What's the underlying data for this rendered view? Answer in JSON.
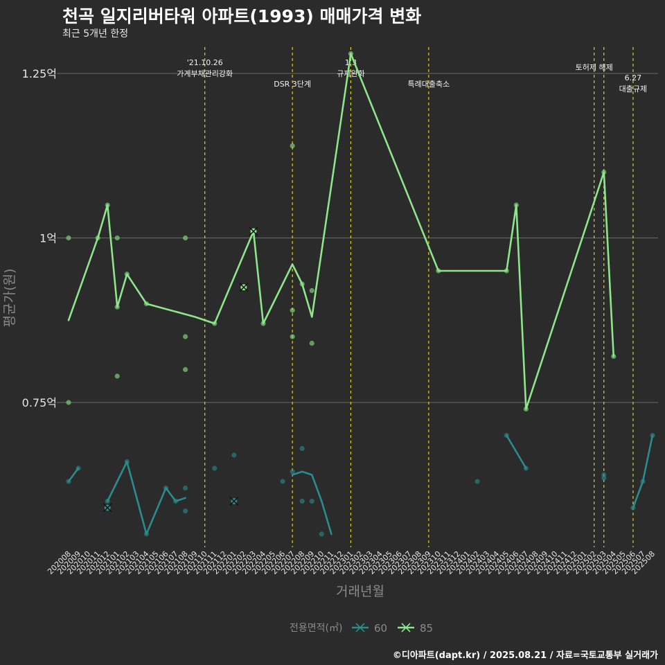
{
  "title": "천곡 일지리버타워 아파트(1993) 매매가격 변화",
  "subtitle": "최근 5개년 한정",
  "caption": "©디아파트(dapt.kr) / 2025.08.21 / 자료=국토교통부 실거래가",
  "colors": {
    "background": "#2b2b2b",
    "series_60": "#2a8c8c",
    "series_85": "#8ee68a",
    "event_line": "#d8d81a",
    "grid": "#6a6a6a"
  },
  "chart_data": {
    "type": "line",
    "xlabel": "거래년월",
    "ylabel": "평균가(원)",
    "categories": [
      "202008",
      "202009",
      "202010",
      "202011",
      "202012",
      "202101",
      "202102",
      "202103",
      "202104",
      "202105",
      "202106",
      "202107",
      "202108",
      "202109",
      "202110",
      "202111",
      "202112",
      "202201",
      "202202",
      "202203",
      "202204",
      "202205",
      "202206",
      "202207",
      "202208",
      "202209",
      "202210",
      "202211",
      "202212",
      "202301",
      "202302",
      "202303",
      "202304",
      "202305",
      "202306",
      "202307",
      "202308",
      "202309",
      "202310",
      "202311",
      "202312",
      "202401",
      "202402",
      "202403",
      "202404",
      "202405",
      "202406",
      "202407",
      "202408",
      "202409",
      "202410",
      "202411",
      "202412",
      "202501",
      "202502",
      "202503",
      "202504",
      "202505",
      "202506",
      "202507",
      "202508"
    ],
    "ylim": [
      0.53,
      1.29
    ],
    "yticks": [
      {
        "value": 0.75,
        "label": "0.75억"
      },
      {
        "value": 1.0,
        "label": "1억"
      },
      {
        "value": 1.25,
        "label": "1.25억"
      }
    ],
    "legend": {
      "title": "전용면적(㎡)",
      "position": "bottom"
    },
    "series": [
      {
        "name": "60",
        "line_segments": [
          [
            [
              "202008",
              0.63
            ],
            [
              "202009",
              0.65
            ]
          ],
          [
            [
              "202012",
              0.6
            ],
            [
              "202102",
              0.66
            ],
            [
              "202104",
              0.55
            ],
            [
              "202106",
              0.62
            ],
            [
              "202107",
              0.6
            ],
            [
              "202108",
              0.605
            ]
          ],
          [
            [
              "202207",
              0.64
            ],
            [
              "202208",
              0.645
            ],
            [
              "202209",
              0.64
            ],
            [
              "202210",
              0.6
            ],
            [
              "202211",
              0.55
            ]
          ],
          [
            [
              "202405",
              0.7
            ],
            [
              "202407",
              0.65
            ]
          ],
          [
            [
              "202506",
              0.59
            ],
            [
              "202507",
              0.63
            ],
            [
              "202508",
              0.7
            ]
          ]
        ],
        "points": [
          [
            "202008",
            0.63
          ],
          [
            "202009",
            0.65
          ],
          [
            "202012",
            0.59
          ],
          [
            "202012",
            0.6
          ],
          [
            "202102",
            0.66
          ],
          [
            "202104",
            0.55
          ],
          [
            "202106",
            0.62
          ],
          [
            "202107",
            0.6
          ],
          [
            "202108",
            0.62
          ],
          [
            "202108",
            0.585
          ],
          [
            "202111",
            0.65
          ],
          [
            "202201",
            0.67
          ],
          [
            "202201",
            0.6
          ],
          [
            "202206",
            0.63
          ],
          [
            "202207",
            0.645
          ],
          [
            "202208",
            0.68
          ],
          [
            "202208",
            0.6
          ],
          [
            "202209",
            0.6
          ],
          [
            "202210",
            0.55
          ],
          [
            "202402",
            0.63
          ],
          [
            "202405",
            0.7
          ],
          [
            "202407",
            0.65
          ],
          [
            "202503",
            0.635
          ],
          [
            "202503",
            0.64
          ],
          [
            "202506",
            0.59
          ],
          [
            "202507",
            0.63
          ],
          [
            "202508",
            0.7
          ]
        ],
        "cancelled": [
          [
            "202012",
            0.59
          ],
          [
            "202201",
            0.6
          ]
        ]
      },
      {
        "name": "85",
        "line": [
          [
            "202008",
            0.875
          ],
          [
            "202011",
            1.0
          ],
          [
            "202012",
            1.05
          ],
          [
            "202101",
            0.895
          ],
          [
            "202102",
            0.945
          ],
          [
            "202104",
            0.9
          ],
          [
            "202109",
            0.88
          ],
          [
            "202111",
            0.87
          ],
          [
            "202203",
            1.01
          ],
          [
            "202204",
            0.87
          ],
          [
            "202207",
            0.96
          ],
          [
            "202208",
            0.93
          ],
          [
            "202209",
            0.88
          ],
          [
            "202301",
            1.28
          ],
          [
            "202310",
            0.95
          ],
          [
            "202405",
            0.95
          ],
          [
            "202406",
            1.05
          ],
          [
            "202407",
            0.74
          ],
          [
            "202503",
            1.1
          ],
          [
            "202504",
            0.82
          ]
        ],
        "points": [
          [
            "202008",
            1.0
          ],
          [
            "202008",
            0.75
          ],
          [
            "202011",
            1.0
          ],
          [
            "202012",
            1.05
          ],
          [
            "202101",
            1.0
          ],
          [
            "202101",
            0.79
          ],
          [
            "202101",
            0.895
          ],
          [
            "202102",
            0.945
          ],
          [
            "202104",
            0.9
          ],
          [
            "202108",
            1.0
          ],
          [
            "202108",
            0.85
          ],
          [
            "202108",
            0.8
          ],
          [
            "202111",
            0.87
          ],
          [
            "202202",
            0.925
          ],
          [
            "202203",
            1.01
          ],
          [
            "202204",
            0.87
          ],
          [
            "202207",
            1.14
          ],
          [
            "202207",
            0.89
          ],
          [
            "202207",
            0.85
          ],
          [
            "202208",
            0.93
          ],
          [
            "202209",
            0.92
          ],
          [
            "202209",
            0.84
          ],
          [
            "202301",
            1.28
          ],
          [
            "202310",
            0.95
          ],
          [
            "202405",
            0.95
          ],
          [
            "202406",
            1.05
          ],
          [
            "202407",
            0.74
          ],
          [
            "202503",
            1.1
          ],
          [
            "202504",
            0.82
          ]
        ],
        "cancelled": [
          [
            "202202",
            0.925
          ],
          [
            "202203",
            1.01
          ]
        ]
      }
    ],
    "events": [
      {
        "at": "202110",
        "lines": [
          "'21.10.26",
          "가계부채관리강화"
        ],
        "row": 0
      },
      {
        "at": "202207",
        "lines": [
          "DSR 3단계"
        ],
        "row": 2
      },
      {
        "at": "202301",
        "lines": [
          "1.3",
          "규제완화"
        ],
        "row": 0
      },
      {
        "at": "202309",
        "lines": [
          "특례대출축소"
        ],
        "row": 2
      },
      {
        "at": "202502",
        "lines": [
          "토허제 해제"
        ],
        "row": 1
      },
      {
        "at": "202503",
        "lines": [],
        "row": 1
      },
      {
        "at": "202506",
        "lines": [
          "6.27",
          "대출규제"
        ],
        "row": 3
      }
    ]
  }
}
